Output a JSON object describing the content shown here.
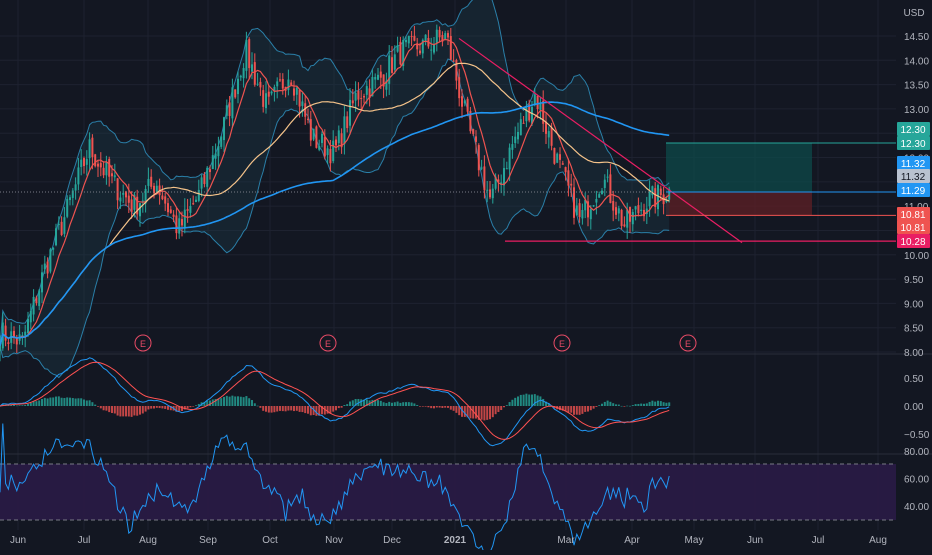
{
  "currency_label": "USD",
  "colors": {
    "background": "#131722",
    "grid": "#1e2230",
    "axis_text": "#b2b5be",
    "up_candle": "#26a69a",
    "down_candle": "#ef5350",
    "bollinger": "#2a7fa8",
    "ma_fast": "#ef5350",
    "ma_mid": "#f5c38a",
    "ma_slow": "#2196f3",
    "trendline": "#e91e63",
    "macd": "#2196f3",
    "macd_signal": "#ff5252",
    "rsi_line": "#2196f3",
    "rsi_band": "#2a1b46",
    "earnings": "#e84b66",
    "target_zone": "#0e4a4a",
    "stop_zone": "#5a1f26"
  },
  "chart_data": [
    {
      "type": "candlestick",
      "title": "",
      "x_labels": [
        "Jun",
        "Jul",
        "Aug",
        "Sep",
        "Oct",
        "Nov",
        "Dec",
        "2021",
        "Mar",
        "Apr",
        "May",
        "Jun",
        "Jul",
        "Aug"
      ],
      "y_ticks": [
        "14.50",
        "14.00",
        "13.50",
        "13.00",
        "12.50",
        "12.00",
        "11.50",
        "11.00",
        "10.50",
        "10.00",
        "9.50",
        "9.00",
        "8.50",
        "8.00"
      ],
      "ylim": [
        8.0,
        14.75
      ],
      "log_scale": false,
      "grid": true,
      "anchor_prices": [
        8.4,
        8.2,
        9.7,
        10.9,
        12.2,
        11.5,
        11.0,
        11.5,
        10.5,
        11.3,
        12.6,
        14.2,
        13.0,
        13.8,
        12.4,
        12.1,
        13.3,
        13.6,
        14.2,
        14.3,
        14.5,
        12.6,
        11.1,
        12.3,
        13.3,
        11.9,
        10.7,
        11.6,
        10.6,
        11.1,
        11.3
      ],
      "series": [
        {
          "name": "Bollinger Bands",
          "indicator": "bollinger"
        },
        {
          "name": "MA fast",
          "indicator": "ma"
        },
        {
          "name": "MA mid",
          "indicator": "ma"
        },
        {
          "name": "MA slow",
          "indicator": "ma"
        }
      ],
      "price_labels": [
        {
          "value": "12.30",
          "role": "target"
        },
        {
          "value": "12.30",
          "role": "target"
        },
        {
          "value": "11.32",
          "role": "ma-slow"
        },
        {
          "value": "11.32",
          "role": "ma-mid"
        },
        {
          "value": "11.29",
          "role": "last"
        },
        {
          "value": "10.81",
          "role": "stop"
        },
        {
          "value": "10.81",
          "role": "stop"
        },
        {
          "value": "10.28",
          "role": "support"
        }
      ],
      "earnings_markers": [
        "E",
        "E",
        "E",
        "E"
      ],
      "trendline_prices": [
        14.45,
        10.25
      ],
      "support_price": 10.28,
      "position": {
        "entry": 11.29,
        "target": 12.3,
        "stop": 10.81
      }
    },
    {
      "type": "histogram",
      "name": "MACD",
      "y_ticks": [
        "0.50",
        "0.00",
        "−0.50"
      ],
      "ylim": [
        -0.75,
        0.75
      ],
      "grid": true
    },
    {
      "type": "line",
      "name": "RSI",
      "y_ticks": [
        "80.00",
        "60.00",
        "40.00"
      ],
      "ylim": [
        30,
        85
      ],
      "band": [
        70,
        30
      ],
      "grid": true
    }
  ]
}
